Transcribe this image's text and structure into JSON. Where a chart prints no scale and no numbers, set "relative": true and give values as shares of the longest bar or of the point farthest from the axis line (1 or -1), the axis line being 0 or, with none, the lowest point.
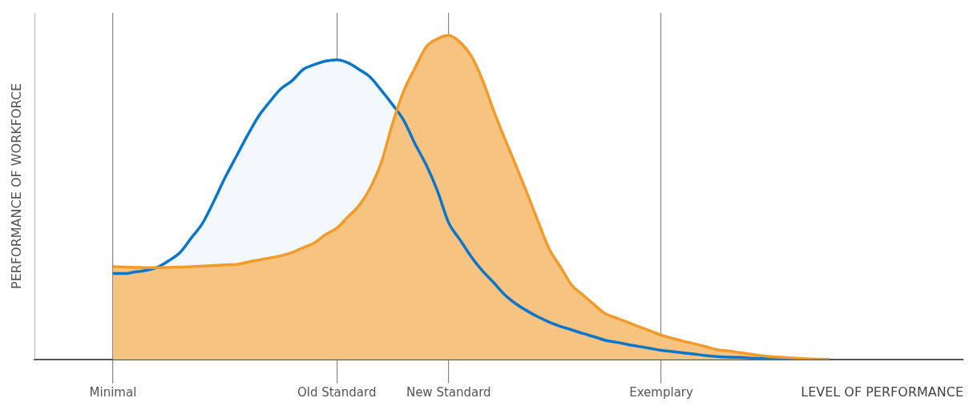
{
  "chart_data": {
    "type": "area",
    "relative": true,
    "xlabel": "LEVEL OF PERFORMANCE",
    "ylabel": "PERFORMANCE OF WORKFORCE",
    "categories": [
      null,
      null,
      null,
      null,
      null,
      null,
      null,
      "Minimal",
      null,
      null,
      null,
      null,
      null,
      null,
      null,
      null,
      null,
      null,
      null,
      null,
      null,
      null,
      null,
      null,
      null,
      null,
      null,
      "Old Standard",
      null,
      null,
      null,
      null,
      null,
      null,
      null,
      null,
      null,
      "New Standard",
      null,
      null,
      null,
      null,
      null,
      null,
      null,
      null,
      null,
      null,
      null,
      null,
      null,
      null,
      null,
      null,
      null,
      null,
      "Exemplary",
      null,
      null,
      null,
      null,
      null,
      null,
      null,
      null,
      null,
      null,
      null,
      null,
      null,
      null,
      null,
      null,
      null,
      null,
      null,
      null,
      null,
      null,
      null,
      null,
      null,
      null,
      null
    ],
    "grid": "x",
    "marker": "none",
    "line_style": "solid",
    "series": [
      {
        "color": "#0a75c9",
        "values": [
          null,
          null,
          null,
          null,
          null,
          null,
          null,
          0.265,
          0.265,
          0.27,
          0.275,
          0.285,
          0.305,
          0.33,
          0.375,
          0.42,
          0.487,
          0.56,
          0.625,
          0.69,
          0.75,
          0.795,
          0.835,
          0.86,
          0.895,
          0.91,
          0.921,
          0.925,
          0.916,
          0.895,
          0.871,
          0.83,
          0.786,
          0.737,
          0.665,
          0.6,
          0.52,
          0.422,
          0.37,
          0.318,
          0.274,
          0.238,
          0.2,
          0.172,
          0.15,
          0.131,
          0.115,
          0.102,
          0.091,
          0.08,
          0.07,
          0.059,
          0.053,
          0.046,
          0.04,
          0.034,
          0.028,
          0.024,
          0.02,
          0.016,
          0.012,
          0.009,
          0.007,
          0.006,
          0.004,
          0.003,
          0.002,
          0.001,
          0.001,
          0,
          0,
          0,
          null,
          null,
          null,
          null,
          null,
          null,
          null,
          null,
          null,
          null,
          null,
          null
        ]
      },
      {
        "color": "#f29b2b",
        "values": [
          null,
          null,
          null,
          null,
          null,
          null,
          null,
          0.286,
          0.285,
          0.284,
          0.283,
          0.283,
          0.284,
          0.285,
          0.286,
          0.288,
          0.29,
          0.292,
          0.293,
          0.3,
          0.307,
          0.313,
          0.32,
          0.33,
          0.345,
          0.36,
          0.385,
          0.405,
          0.44,
          0.475,
          0.53,
          0.61,
          0.73,
          0.83,
          0.9,
          0.965,
          0.99,
          1,
          0.98,
          0.938,
          0.865,
          0.77,
          0.683,
          0.6,
          0.514,
          0.425,
          0.34,
          0.285,
          0.229,
          0.199,
          0.169,
          0.141,
          0.128,
          0.115,
          0.101,
          0.088,
          0.075,
          0.065,
          0.056,
          0.048,
          0.039,
          0.03,
          0.026,
          0.021,
          0.016,
          0.011,
          0.008,
          0.006,
          0.004,
          0.002,
          0.001,
          0,
          null,
          null,
          null,
          null,
          null,
          null,
          null,
          null,
          null,
          null,
          null,
          null
        ]
      }
    ]
  }
}
